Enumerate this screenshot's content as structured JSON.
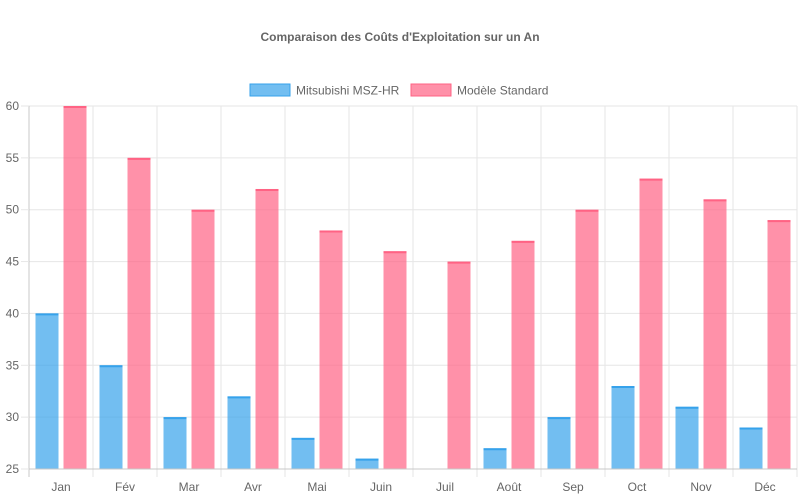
{
  "chart_data": {
    "type": "bar",
    "title": "Comparaison des Coûts d'Exploitation sur un An",
    "categories": [
      "Jan",
      "Fév",
      "Mar",
      "Avr",
      "Mai",
      "Juin",
      "Juil",
      "Août",
      "Sep",
      "Oct",
      "Nov",
      "Déc"
    ],
    "series": [
      {
        "name": "Mitsubishi MSZ-HR",
        "values": [
          40,
          35,
          30,
          32,
          28,
          26,
          25,
          27,
          30,
          33,
          31,
          29
        ],
        "color": "#36a2eb",
        "fill": "rgba(54,162,235,0.7)"
      },
      {
        "name": "Modèle Standard",
        "values": [
          60,
          55,
          50,
          52,
          48,
          46,
          45,
          47,
          50,
          53,
          51,
          49
        ],
        "color": "#ff6384",
        "fill": "rgba(255,99,132,0.7)"
      }
    ],
    "ylim": [
      25,
      60
    ],
    "yticks": [
      25,
      30,
      35,
      40,
      45,
      50,
      55,
      60
    ],
    "xlabel": "",
    "ylabel": "",
    "grid": true,
    "legend": "top-center"
  }
}
